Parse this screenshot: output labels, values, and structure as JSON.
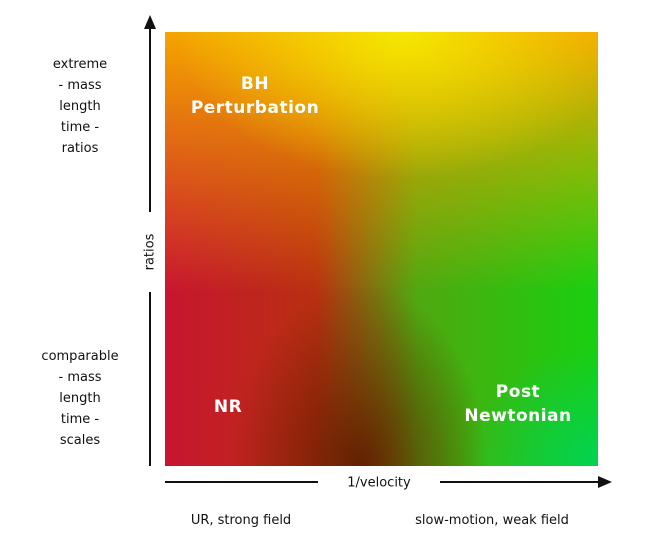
{
  "axes": {
    "y_label": "ratios",
    "x_label": "1/velocity",
    "y_top": [
      "extreme",
      "- mass",
      "length",
      "time -",
      "ratios"
    ],
    "y_bottom": [
      "comparable",
      "- mass",
      "length",
      "time -",
      "scales"
    ],
    "x_left": "UR, strong field",
    "x_right": "slow-motion, weak field"
  },
  "regions": [
    {
      "label": [
        "BH",
        "Perturbation"
      ]
    },
    {
      "label": [
        "NR"
      ]
    },
    {
      "label": [
        "Post",
        "Newtonian"
      ]
    }
  ]
}
